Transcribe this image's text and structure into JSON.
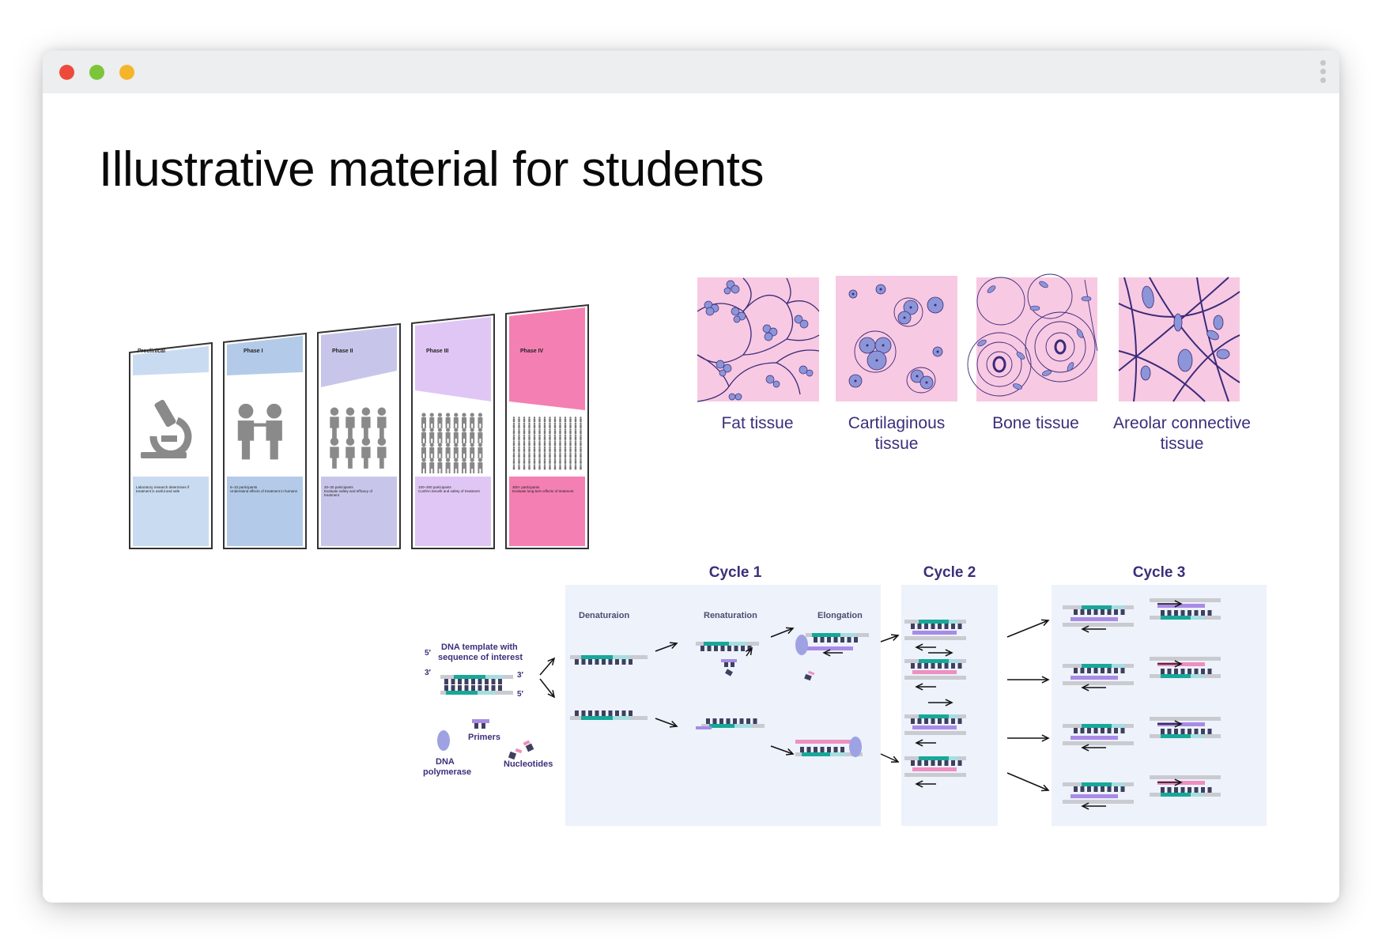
{
  "window": {
    "controls": {
      "close_color": "#ee4a3c",
      "minimize_color": "#7cc53a",
      "zoom_color": "#f5b52a"
    }
  },
  "page": {
    "title": "Illustrative material for students"
  },
  "clinical_trials": {
    "phases": [
      {
        "name": "Preclinical",
        "desc_line1": "Laboratory research determines if",
        "desc_line2": "treatment is useful and safe",
        "header_color": "#c9dbf1",
        "body_color": "#c9dbf1",
        "icon": "microscope-icon"
      },
      {
        "name": "Phase I",
        "desc_line1": "6–10 participants",
        "desc_line2": "Understand effects of treatment in humans",
        "header_color": "#b3cbe9",
        "body_color": "#b3cbe9",
        "icon": "two-people-icon"
      },
      {
        "name": "Phase II",
        "desc_line1": "20–30 participants",
        "desc_line2": "Evaluate safety and efficacy of",
        "desc_line3": "treatment",
        "header_color": "#c7c6ea",
        "body_color": "#c7c6ea",
        "icon": "group-people-icon"
      },
      {
        "name": "Phase III",
        "desc_line1": "100–300 participants",
        "desc_line2": "Confirm benefit and safety of treatment",
        "header_color": "#e0c6f5",
        "body_color": "#e0c6f5",
        "icon": "crowd-people-icon"
      },
      {
        "name": "Phase IV",
        "desc_line1": "300+ participants",
        "desc_line2": "Evaluate long-term effects of treatment",
        "header_color": "#f47fb3",
        "body_color": "#f47fb3",
        "icon": "large-crowd-icon"
      }
    ]
  },
  "tissues": {
    "items": [
      {
        "line1": "Fat tissue",
        "line2": ""
      },
      {
        "line1": "Cartilaginous",
        "line2": "tissue"
      },
      {
        "line1": "Bone tissue",
        "line2": ""
      },
      {
        "line1": "Areolar connective",
        "line2": "tissue"
      }
    ],
    "background_color": "#f8c9e2",
    "outline_color": "#3a2b7a",
    "cell_color": "#8c95d8"
  },
  "pcr": {
    "cycles": [
      "Cycle 1",
      "Cycle 2",
      "Cycle 3"
    ],
    "steps": [
      "Denaturaion",
      "Renaturation",
      "Elongation"
    ],
    "legend": {
      "five_prime": "5′",
      "three_prime": "3′",
      "template_line1": "DNA template with",
      "template_line2": "sequence of interest",
      "primers": "Primers",
      "polymerase_line1": "DNA",
      "polymerase_line2": "polymerase",
      "nucleotides": "Nucleotides"
    },
    "colors": {
      "panel": "#edf2fb",
      "teal": "#17a89a",
      "lightteal": "#a7dde0",
      "purple": "#a98be6",
      "pink": "#ee8fc0",
      "navy": "#3f4060",
      "gray": "#c9cbd1",
      "enzyme": "#9fa2e2"
    }
  }
}
